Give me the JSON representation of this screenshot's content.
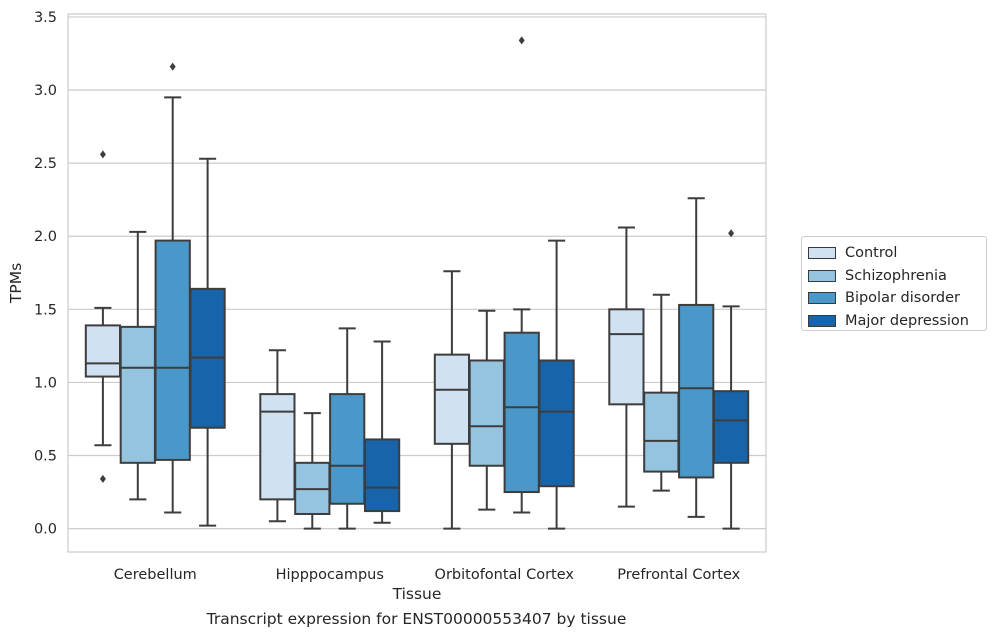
{
  "chart_data": {
    "type": "box",
    "title": "",
    "xlabel": "Tissue",
    "ylabel": "TPMs",
    "caption": "Transcript expression for ENST00000553407 by tissue",
    "ylim": [
      -0.16,
      3.52
    ],
    "yticks": [
      "0.0",
      "0.5",
      "1.0",
      "1.5",
      "2.0",
      "2.5",
      "3.0",
      "3.5"
    ],
    "ytick_values": [
      0,
      0.5,
      1.0,
      1.5,
      2.0,
      2.5,
      3.0,
      3.5
    ],
    "grid": true,
    "legend_position": "right",
    "categories": [
      "Cerebellum",
      "Hipppocampus",
      "Orbitofontal Cortex",
      "Prefrontal Cortex"
    ],
    "series": [
      {
        "name": "Control",
        "color": "#d0e1f2",
        "boxes": [
          {
            "whislo": 0.57,
            "q1": 1.04,
            "med": 1.13,
            "q3": 1.39,
            "whishi": 1.51,
            "fliers": [
              2.56,
              0.34
            ]
          },
          {
            "whislo": 0.05,
            "q1": 0.2,
            "med": 0.8,
            "q3": 0.92,
            "whishi": 1.22,
            "fliers": []
          },
          {
            "whislo": 0.0,
            "q1": 0.58,
            "med": 0.95,
            "q3": 1.19,
            "whishi": 1.76,
            "fliers": []
          },
          {
            "whislo": 0.15,
            "q1": 0.85,
            "med": 1.33,
            "q3": 1.5,
            "whishi": 2.06,
            "fliers": []
          }
        ]
      },
      {
        "name": "Schizophrenia",
        "color": "#94c4df",
        "boxes": [
          {
            "whislo": 0.2,
            "q1": 0.45,
            "med": 1.1,
            "q3": 1.38,
            "whishi": 2.03,
            "fliers": []
          },
          {
            "whislo": 0.0,
            "q1": 0.1,
            "med": 0.27,
            "q3": 0.45,
            "whishi": 0.79,
            "fliers": []
          },
          {
            "whislo": 0.13,
            "q1": 0.43,
            "med": 0.7,
            "q3": 1.15,
            "whishi": 1.49,
            "fliers": []
          },
          {
            "whislo": 0.26,
            "q1": 0.39,
            "med": 0.6,
            "q3": 0.93,
            "whishi": 1.6,
            "fliers": []
          }
        ]
      },
      {
        "name": "Bipolar disorder",
        "color": "#4a98c9",
        "boxes": [
          {
            "whislo": 0.11,
            "q1": 0.47,
            "med": 1.1,
            "q3": 1.97,
            "whishi": 2.95,
            "fliers": [
              3.16
            ]
          },
          {
            "whislo": 0.0,
            "q1": 0.17,
            "med": 0.43,
            "q3": 0.92,
            "whishi": 1.37,
            "fliers": []
          },
          {
            "whislo": 0.11,
            "q1": 0.25,
            "med": 0.83,
            "q3": 1.34,
            "whishi": 1.5,
            "fliers": [
              3.34
            ]
          },
          {
            "whislo": 0.08,
            "q1": 0.35,
            "med": 0.96,
            "q3": 1.53,
            "whishi": 2.26,
            "fliers": []
          }
        ]
      },
      {
        "name": "Major depression",
        "color": "#1764ab",
        "boxes": [
          {
            "whislo": 0.02,
            "q1": 0.69,
            "med": 1.17,
            "q3": 1.64,
            "whishi": 2.53,
            "fliers": []
          },
          {
            "whislo": 0.04,
            "q1": 0.12,
            "med": 0.28,
            "q3": 0.61,
            "whishi": 1.28,
            "fliers": []
          },
          {
            "whislo": 0.0,
            "q1": 0.29,
            "med": 0.8,
            "q3": 1.15,
            "whishi": 1.97,
            "fliers": []
          },
          {
            "whislo": 0.0,
            "q1": 0.45,
            "med": 0.74,
            "q3": 0.94,
            "whishi": 1.52,
            "fliers": [
              2.02
            ]
          }
        ]
      }
    ]
  }
}
